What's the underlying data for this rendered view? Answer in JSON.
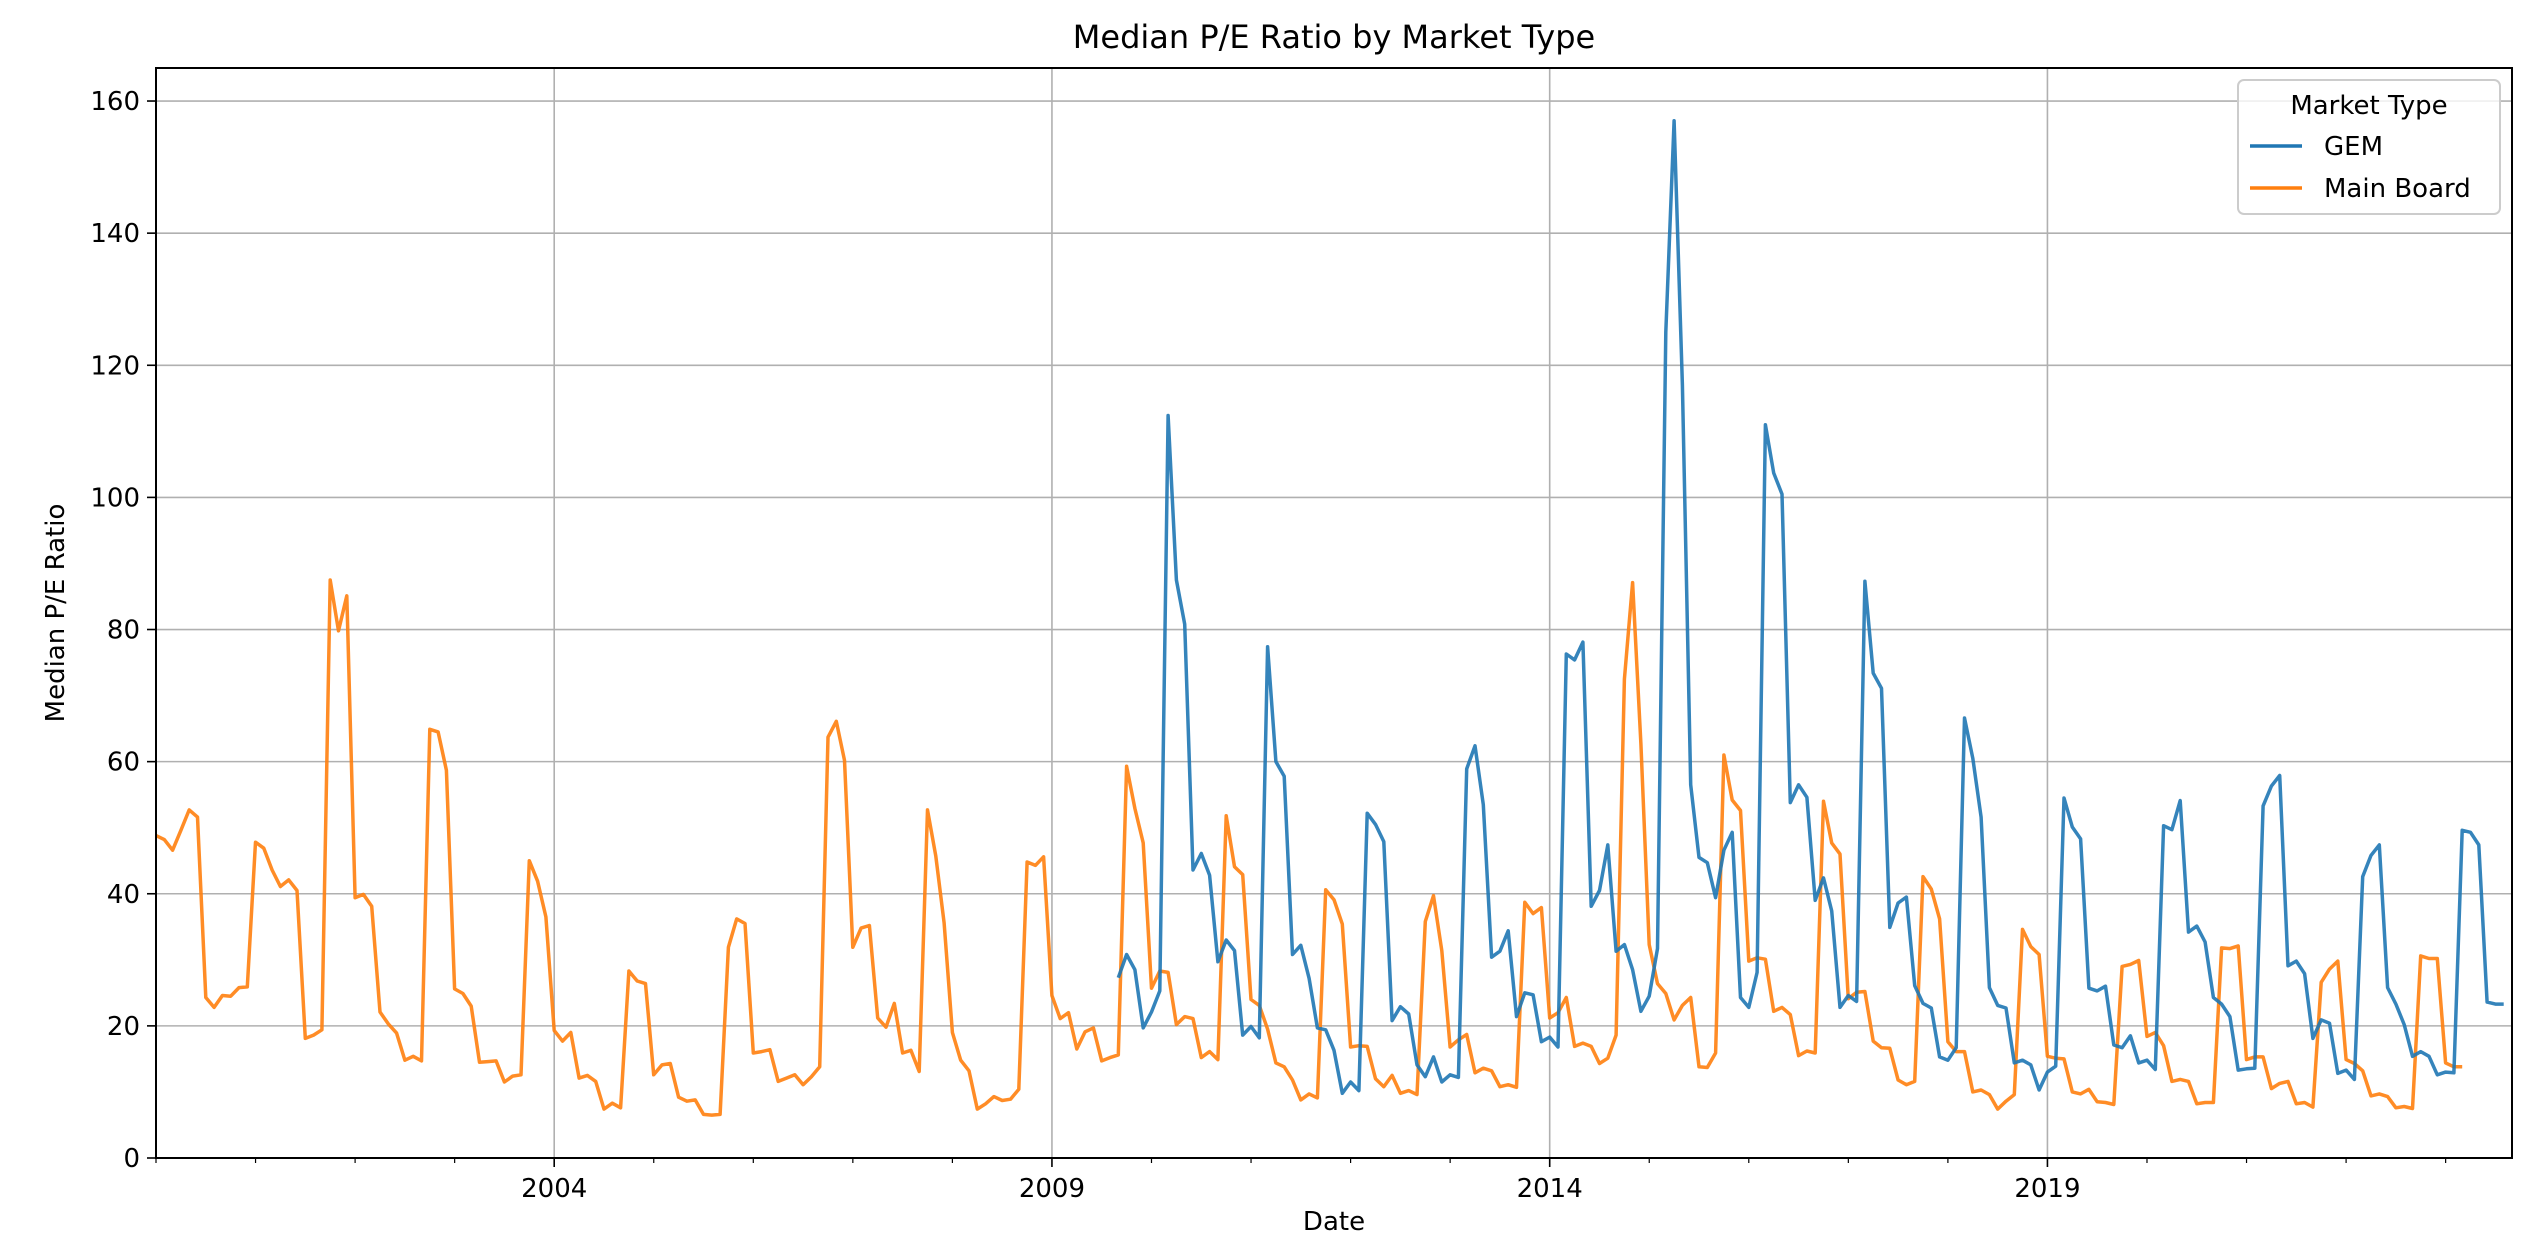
{
  "chart_data": {
    "type": "line",
    "title": "Median P/E Ratio by Market Type",
    "xlabel": "Date",
    "ylabel": "Median P/E Ratio",
    "xlim": [
      "2000-01-01",
      "2023-09-01"
    ],
    "ylim": [
      0,
      165
    ],
    "x_ticks": [
      "2004",
      "2009",
      "2014",
      "2019"
    ],
    "y_ticks": [
      0,
      20,
      40,
      60,
      80,
      100,
      120,
      140,
      160
    ],
    "grid": true,
    "legend": {
      "title": "Market Type",
      "position": "top-right"
    },
    "colors": {
      "GEM": "#1f77b4",
      "Main Board": "#ff7f0e"
    },
    "series": [
      {
        "name": "GEM",
        "start": "2009-09",
        "values": [
          27.3,
          30.8,
          28.5,
          19.7,
          22.1,
          25.3,
          112.4,
          87.5,
          80.8,
          43.6,
          46.1,
          42.8,
          29.7,
          33.0,
          31.4,
          18.6,
          19.9,
          18.2,
          77.4,
          60.0,
          57.8,
          30.8,
          32.2,
          27.2,
          19.7,
          19.4,
          16.3,
          9.8,
          11.5,
          10.2,
          52.2,
          50.5,
          47.9,
          20.8,
          22.9,
          21.8,
          14.1,
          12.3,
          15.3,
          11.5,
          12.6,
          12.2,
          58.9,
          62.4,
          53.5,
          30.4,
          31.3,
          34.4,
          21.4,
          25.0,
          24.7,
          17.6,
          18.3,
          16.8,
          76.3,
          75.4,
          78.1,
          38.1,
          40.5,
          47.4,
          31.3,
          32.3,
          28.5,
          22.2,
          24.5,
          31.7,
          125.0,
          157.0,
          117.0,
          56.5,
          45.5,
          44.7,
          39.4,
          46.6,
          49.3,
          24.3,
          22.8,
          28.1,
          111.0,
          103.7,
          100.5,
          53.8,
          56.5,
          54.6,
          39.0,
          42.4,
          37.4,
          22.8,
          24.6,
          23.7,
          87.3,
          73.4,
          71.1,
          34.9,
          38.6,
          39.5,
          26.1,
          23.4,
          22.7,
          15.3,
          14.8,
          16.7,
          66.6,
          60.5,
          51.6,
          25.8,
          23.1,
          22.7,
          14.4,
          14.8,
          14.1,
          10.3,
          13.0,
          13.9,
          54.5,
          50.1,
          48.3,
          25.7,
          25.3,
          26.0,
          17.1,
          16.7,
          18.5,
          14.4,
          14.8,
          13.4,
          50.3,
          49.7,
          54.1,
          34.2,
          35.1,
          32.7,
          24.3,
          23.3,
          21.4,
          13.3,
          13.5,
          13.6,
          53.3,
          56.3,
          57.9,
          29.1,
          29.8,
          27.9,
          18.1,
          20.9,
          20.4,
          12.8,
          13.3,
          11.9,
          42.6,
          45.8,
          47.4,
          25.8,
          23.3,
          20.2,
          15.4,
          16.1,
          15.4,
          12.6,
          13.0,
          12.9,
          49.6,
          49.3,
          47.4,
          23.6,
          23.3,
          23.3
        ]
      },
      {
        "name": "Main Board",
        "start": "2000-01",
        "values": [
          48.8,
          48.2,
          46.6,
          49.6,
          52.7,
          51.6,
          24.3,
          22.8,
          24.6,
          24.5,
          25.8,
          25.9,
          47.8,
          46.9,
          43.6,
          41.1,
          42.1,
          40.5,
          18.1,
          18.6,
          19.4,
          87.5,
          79.8,
          85.1,
          39.4,
          39.9,
          38.1,
          22.1,
          20.3,
          18.9,
          14.8,
          15.4,
          14.7,
          64.9,
          64.5,
          58.7,
          25.6,
          24.9,
          23.0,
          14.5,
          14.6,
          14.7,
          11.5,
          12.4,
          12.6,
          45.0,
          41.9,
          36.5,
          19.3,
          17.7,
          19.0,
          12.1,
          12.5,
          11.6,
          7.4,
          8.3,
          7.6,
          28.3,
          26.8,
          26.4,
          12.6,
          14.1,
          14.3,
          9.2,
          8.6,
          8.8,
          6.6,
          6.5,
          6.6,
          31.9,
          36.2,
          35.5,
          15.9,
          16.1,
          16.4,
          11.6,
          12.1,
          12.6,
          11.1,
          12.3,
          13.8,
          63.7,
          66.1,
          60.2,
          31.9,
          34.8,
          35.2,
          21.2,
          19.8,
          23.4,
          15.9,
          16.3,
          13.1,
          52.7,
          45.7,
          35.6,
          19.0,
          14.8,
          13.2,
          7.4,
          8.2,
          9.3,
          8.7,
          8.9,
          10.4,
          44.8,
          44.3,
          45.6,
          24.6,
          21.1,
          22.0,
          16.5,
          19.1,
          19.7,
          14.7,
          15.2,
          15.6,
          59.3,
          52.9,
          47.7,
          25.7,
          28.3,
          28.1,
          20.2,
          21.4,
          21.1,
          15.2,
          16.1,
          14.9,
          51.8,
          44.1,
          42.9,
          24.0,
          23.1,
          19.5,
          14.4,
          13.8,
          11.8,
          8.8,
          9.7,
          9.1,
          40.6,
          39.1,
          35.4,
          16.8,
          17.0,
          16.9,
          12.0,
          10.8,
          12.5,
          9.8,
          10.2,
          9.6,
          35.8,
          39.7,
          31.4,
          16.8,
          17.9,
          18.7,
          12.9,
          13.6,
          13.2,
          10.8,
          11.1,
          10.7,
          38.7,
          37.0,
          37.9,
          21.2,
          22.0,
          24.3,
          16.9,
          17.4,
          16.9,
          14.3,
          15.1,
          18.6,
          72.5,
          87.1,
          62.7,
          32.3,
          26.4,
          24.9,
          20.9,
          23.1,
          24.3,
          13.8,
          13.7,
          15.9,
          61.0,
          54.2,
          52.6,
          29.8,
          30.3,
          30.1,
          22.2,
          22.8,
          21.7,
          15.5,
          16.2,
          15.9,
          54.0,
          47.7,
          46.0,
          24.1,
          25.1,
          25.2,
          17.7,
          16.7,
          16.6,
          11.8,
          11.1,
          11.6,
          42.6,
          40.7,
          36.2,
          17.6,
          16.1,
          16.1,
          10.0,
          10.3,
          9.6,
          7.4,
          8.6,
          9.6,
          34.6,
          32.0,
          30.8,
          15.4,
          15.1,
          15.0,
          10.0,
          9.7,
          10.4,
          8.5,
          8.4,
          8.1,
          29.0,
          29.3,
          29.9,
          18.4,
          19.0,
          17.0,
          11.6,
          11.9,
          11.6,
          8.2,
          8.4,
          8.4,
          31.8,
          31.7,
          32.1,
          14.9,
          15.3,
          15.3,
          10.5,
          11.3,
          11.6,
          8.2,
          8.4,
          7.7,
          26.6,
          28.6,
          29.8,
          14.9,
          14.3,
          13.2,
          9.4,
          9.7,
          9.3,
          7.6,
          7.8,
          7.5,
          30.6,
          30.2,
          30.2,
          14.4,
          13.8,
          13.8
        ]
      }
    ]
  }
}
